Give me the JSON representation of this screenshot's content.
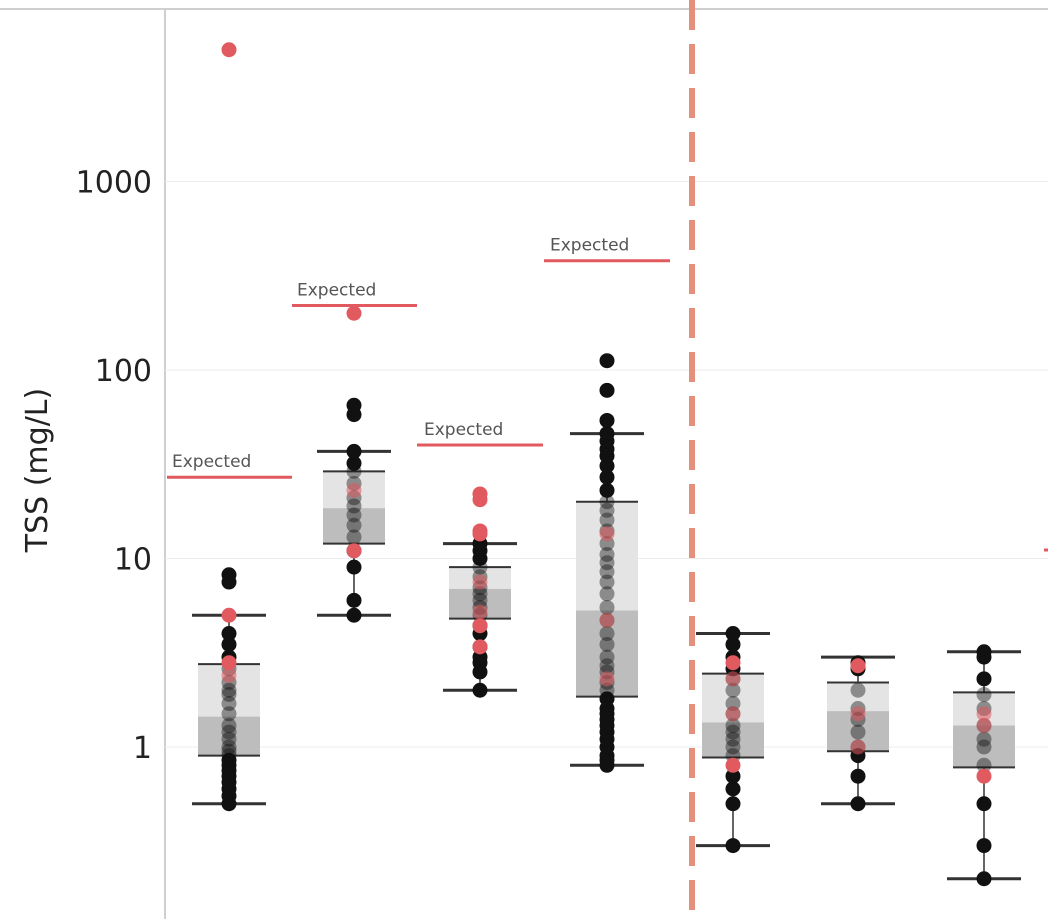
{
  "chart_data": {
    "type": "box",
    "ylabel": "TSS (mg/L)",
    "yscale": "log",
    "ylim": [
      0.13,
      9000
    ],
    "yticks": [
      1,
      10,
      100,
      1000
    ],
    "ytick_labels": [
      "1",
      "10",
      "100",
      "1000"
    ],
    "grid": true,
    "colors": {
      "point_normal": "#111111",
      "point_highlight": "#e05a5f",
      "expected_line": "#e05a5f",
      "divider": "#e4907a",
      "box_upper": "#e4e4e4",
      "box_lower": "#bdbdbd",
      "whisker": "#333333"
    },
    "expected_label": "Expected",
    "groups": [
      {
        "stats": {
          "min": 0.5,
          "q1": 0.9,
          "median": 1.45,
          "q3": 2.75,
          "max": 5.0
        },
        "expected": 27,
        "points_black": [
          0.5,
          0.55,
          0.6,
          0.65,
          0.7,
          0.75,
          0.8,
          0.85,
          0.9,
          0.95,
          1.0,
          1.1,
          1.2,
          1.3,
          1.5,
          1.7,
          1.9,
          2.0,
          2.2,
          2.6,
          3.0,
          3.5,
          4.0,
          7.5,
          8.2
        ],
        "points_red": [
          2.4,
          2.8,
          5.0,
          5000
        ]
      },
      {
        "stats": {
          "min": 5.0,
          "q1": 12.0,
          "median": 18.5,
          "q3": 29.0,
          "max": 37.0
        },
        "expected": 220,
        "points_black": [
          5.0,
          6.0,
          9.0,
          11.0,
          13.0,
          15.0,
          17.0,
          19.0,
          21.0,
          25.0,
          29.0,
          32.0,
          37.0,
          58.0,
          65.0
        ],
        "points_red": [
          11.0,
          23.0,
          200
        ]
      },
      {
        "stats": {
          "min": 2.0,
          "q1": 4.8,
          "median": 6.9,
          "q3": 9.0,
          "max": 12.0
        },
        "expected": 40,
        "points_black": [
          2.0,
          2.5,
          2.8,
          3.0,
          3.4,
          4.0,
          4.4,
          5.0,
          5.5,
          6.0,
          6.5,
          7.0,
          8.0,
          9.0,
          10.0,
          11.0,
          12.0
        ],
        "points_red": [
          3.4,
          4.4,
          5.2,
          7.5,
          13.5,
          14.0,
          20.5,
          22.0
        ]
      },
      {
        "stats": {
          "min": 0.8,
          "q1": 1.85,
          "median": 5.3,
          "q3": 20.0,
          "max": 46.0
        },
        "expected": 380,
        "points_black": [
          0.8,
          0.85,
          0.9,
          1.0,
          1.1,
          1.2,
          1.3,
          1.4,
          1.5,
          1.6,
          1.8,
          2.0,
          2.2,
          2.5,
          2.7,
          3.0,
          3.5,
          4.0,
          4.7,
          5.5,
          6.5,
          7.5,
          8.5,
          9.5,
          10.5,
          12.0,
          14.0,
          16.0,
          18.0,
          20.0,
          23.0,
          27.0,
          31.0,
          35.0,
          38.0,
          42.0,
          46.0,
          54.0,
          78.0,
          112.0
        ],
        "points_red": [
          2.3,
          4.7,
          13.5
        ]
      },
      {
        "stats": {
          "min": 0.3,
          "q1": 0.88,
          "median": 1.35,
          "q3": 2.45,
          "max": 4.0
        },
        "expected": null,
        "points_black": [
          0.3,
          0.5,
          0.6,
          0.7,
          0.9,
          1.0,
          1.1,
          1.2,
          1.3,
          1.5,
          1.7,
          2.0,
          2.3,
          2.6,
          3.0,
          3.5,
          4.0
        ],
        "points_red": [
          0.8,
          1.5,
          2.3,
          2.8
        ]
      },
      {
        "stats": {
          "min": 0.5,
          "q1": 0.95,
          "median": 1.55,
          "q3": 2.2,
          "max": 3.0
        },
        "expected": null,
        "points_black": [
          0.5,
          0.7,
          0.9,
          1.0,
          1.2,
          1.4,
          1.6,
          2.0,
          2.6,
          2.8
        ],
        "points_red": [
          1.0,
          1.5,
          2.7
        ]
      },
      {
        "stats": {
          "min": 0.2,
          "q1": 0.78,
          "median": 1.3,
          "q3": 1.95,
          "max": 3.2
        },
        "expected": null,
        "points_black": [
          0.2,
          0.3,
          0.5,
          0.8,
          1.0,
          1.1,
          1.3,
          1.6,
          1.9,
          2.3,
          3.0,
          3.2
        ],
        "points_red": [
          0.7,
          1.3,
          1.5
        ]
      }
    ]
  }
}
